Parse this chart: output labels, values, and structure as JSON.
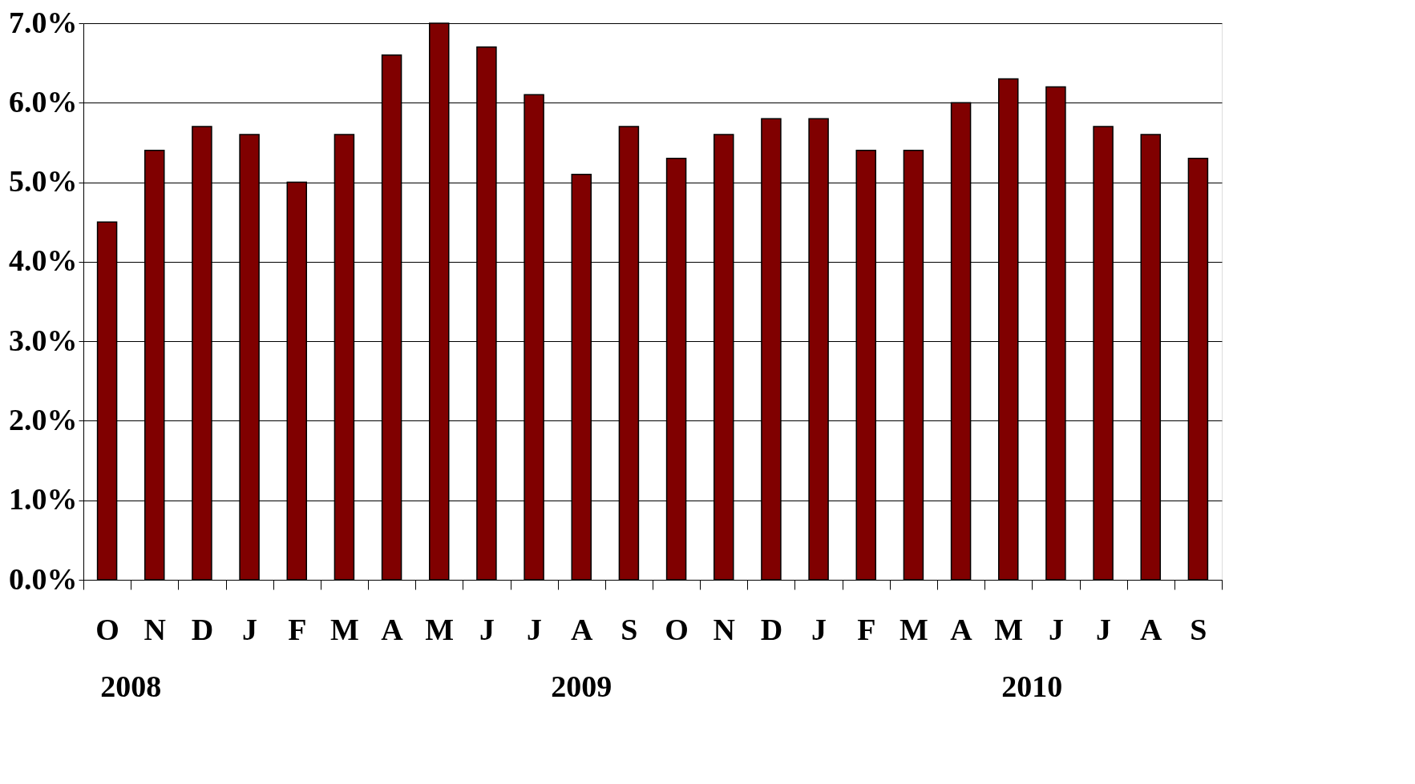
{
  "chart_data": {
    "type": "bar",
    "categories": [
      "O",
      "N",
      "D",
      "J",
      "F",
      "M",
      "A",
      "M",
      "J",
      "J",
      "A",
      "S",
      "O",
      "N",
      "D",
      "J",
      "F",
      "M",
      "A",
      "M",
      "J",
      "J",
      "A",
      "S"
    ],
    "values": [
      4.5,
      5.4,
      5.7,
      5.6,
      5.0,
      5.6,
      6.6,
      7.0,
      6.7,
      6.1,
      5.1,
      5.7,
      5.3,
      5.6,
      5.8,
      5.8,
      5.4,
      5.4,
      6.0,
      6.3,
      6.2,
      5.7,
      5.6,
      5.3
    ],
    "color": "#800000",
    "ylim": [
      0,
      7
    ],
    "yticks": [
      {
        "value": 0,
        "label": "0.0%"
      },
      {
        "value": 1,
        "label": "1.0%"
      },
      {
        "value": 2,
        "label": "2.0%"
      },
      {
        "value": 3,
        "label": "3.0%"
      },
      {
        "value": 4,
        "label": "4.0%"
      },
      {
        "value": 5,
        "label": "5.0%"
      },
      {
        "value": 6,
        "label": "6.0%"
      },
      {
        "value": 7,
        "label": "7.0%"
      }
    ],
    "grid": "y",
    "annotations": [
      "2008",
      "2009",
      "2010"
    ]
  }
}
